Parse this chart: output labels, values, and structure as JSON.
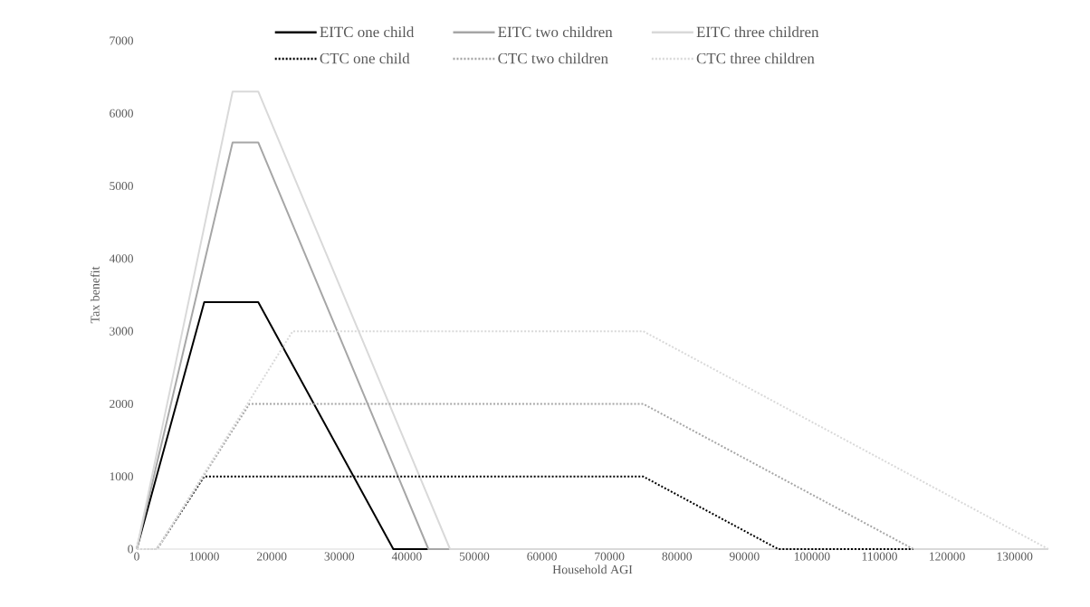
{
  "chart_data": {
    "type": "line",
    "xlabel": "Household AGI",
    "ylabel": "Tax benefit",
    "xlim": [
      0,
      135000
    ],
    "ylim": [
      0,
      7000
    ],
    "xticks": [
      0,
      10000,
      20000,
      30000,
      40000,
      50000,
      60000,
      70000,
      80000,
      90000,
      100000,
      110000,
      120000,
      130000
    ],
    "yticks": [
      0,
      1000,
      2000,
      3000,
      4000,
      5000,
      6000,
      7000
    ],
    "legend": "top",
    "grid": false,
    "series": [
      {
        "name": "EITC one child",
        "color": "#000000",
        "line_style": "solid",
        "x": [
          0,
          10000,
          18000,
          38000,
          43200
        ],
        "values": [
          0,
          3400,
          3400,
          0,
          0
        ]
      },
      {
        "name": "EITC two children",
        "color": "#a6a6a6",
        "line_style": "solid",
        "x": [
          0,
          14200,
          18000,
          43200,
          46400
        ],
        "values": [
          0,
          5600,
          5600,
          0,
          0
        ]
      },
      {
        "name": "EITC three children",
        "color": "#d9d9d9",
        "line_style": "solid",
        "x": [
          0,
          14200,
          18000,
          46400,
          135000
        ],
        "values": [
          0,
          6300,
          6300,
          0,
          0
        ]
      },
      {
        "name": "CTC one child",
        "color": "#000000",
        "line_style": "dotted",
        "x": [
          0,
          3000,
          10000,
          75000,
          95000,
          115000
        ],
        "values": [
          0,
          0,
          1000,
          1000,
          0,
          0
        ]
      },
      {
        "name": "CTC two children",
        "color": "#a6a6a6",
        "line_style": "dotted",
        "x": [
          0,
          3000,
          16700,
          75000,
          115000
        ],
        "values": [
          0,
          0,
          2000,
          2000,
          0
        ]
      },
      {
        "name": "CTC three children",
        "color": "#d9d9d9",
        "line_style": "dotted",
        "x": [
          0,
          3000,
          23100,
          75000,
          135000
        ],
        "values": [
          0,
          0,
          3000,
          3000,
          0
        ]
      }
    ]
  }
}
